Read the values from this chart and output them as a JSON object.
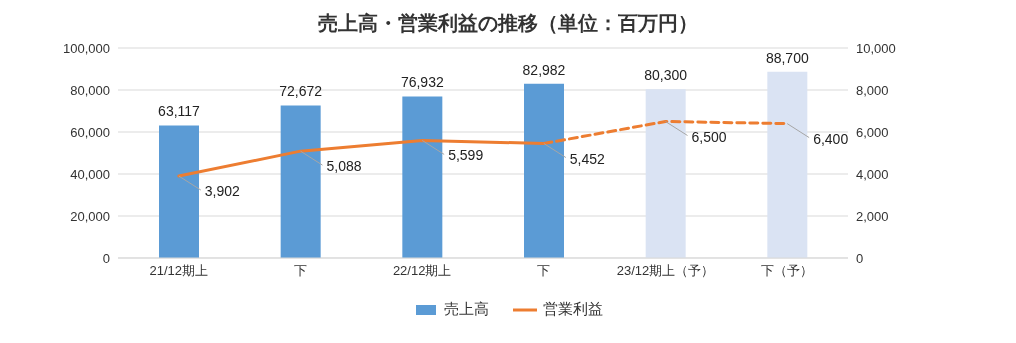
{
  "chart_data": {
    "type": "bar",
    "title": "売上高・営業利益の推移（単位：百万円）",
    "categories": [
      "21/12期上",
      "下",
      "22/12期上",
      "下",
      "23/12期上（予）",
      "下（予）"
    ],
    "series": [
      {
        "name": "売上高",
        "colors": [
          "#5b9bd5",
          "#5b9bd5",
          "#5b9bd5",
          "#5b9bd5",
          "#dae3f3",
          "#dae3f3"
        ],
        "values": [
          63117,
          72672,
          76932,
          82982,
          80300,
          88700
        ],
        "value_labels": [
          "63,117",
          "72,672",
          "76,932",
          "82,982",
          "80,300",
          "88,700"
        ]
      },
      {
        "name": "営業利益",
        "type": "line",
        "axis": "y2",
        "color": "#ed7d31",
        "line_style": "solid",
        "values": [
          3902,
          5088,
          5599,
          5452,
          null,
          null
        ],
        "value_labels": [
          "3,902",
          "5,088",
          "5,599",
          "5,452",
          null,
          null
        ]
      },
      {
        "type": "line",
        "axis": "y2",
        "color": "#ed7d31",
        "line_style": "dashed",
        "values": [
          null,
          null,
          null,
          5452,
          6500,
          6400
        ],
        "value_labels": [
          null,
          null,
          null,
          null,
          "6,500",
          "6,400"
        ]
      }
    ],
    "ylim": [
      0,
      100000
    ],
    "yticks": [
      0,
      {
        "value": 20000,
        "label": "20,000"
      },
      {
        "value": 40000,
        "label": "40,000"
      },
      {
        "value": 60000,
        "label": "60,000"
      },
      {
        "value": 80000,
        "label": "80,000"
      },
      {
        "value": 100000,
        "label": "100,000"
      }
    ],
    "y2lim": [
      0,
      10000
    ],
    "y2ticks": [
      0,
      {
        "value": 2000,
        "label": "2,000"
      },
      {
        "value": 4000,
        "label": "4,000"
      },
      {
        "value": 6000,
        "label": "6,000"
      },
      {
        "value": 8000,
        "label": "8,000"
      },
      {
        "value": 10000,
        "label": "10,000"
      }
    ],
    "grid": "y",
    "legend": "bottom"
  }
}
